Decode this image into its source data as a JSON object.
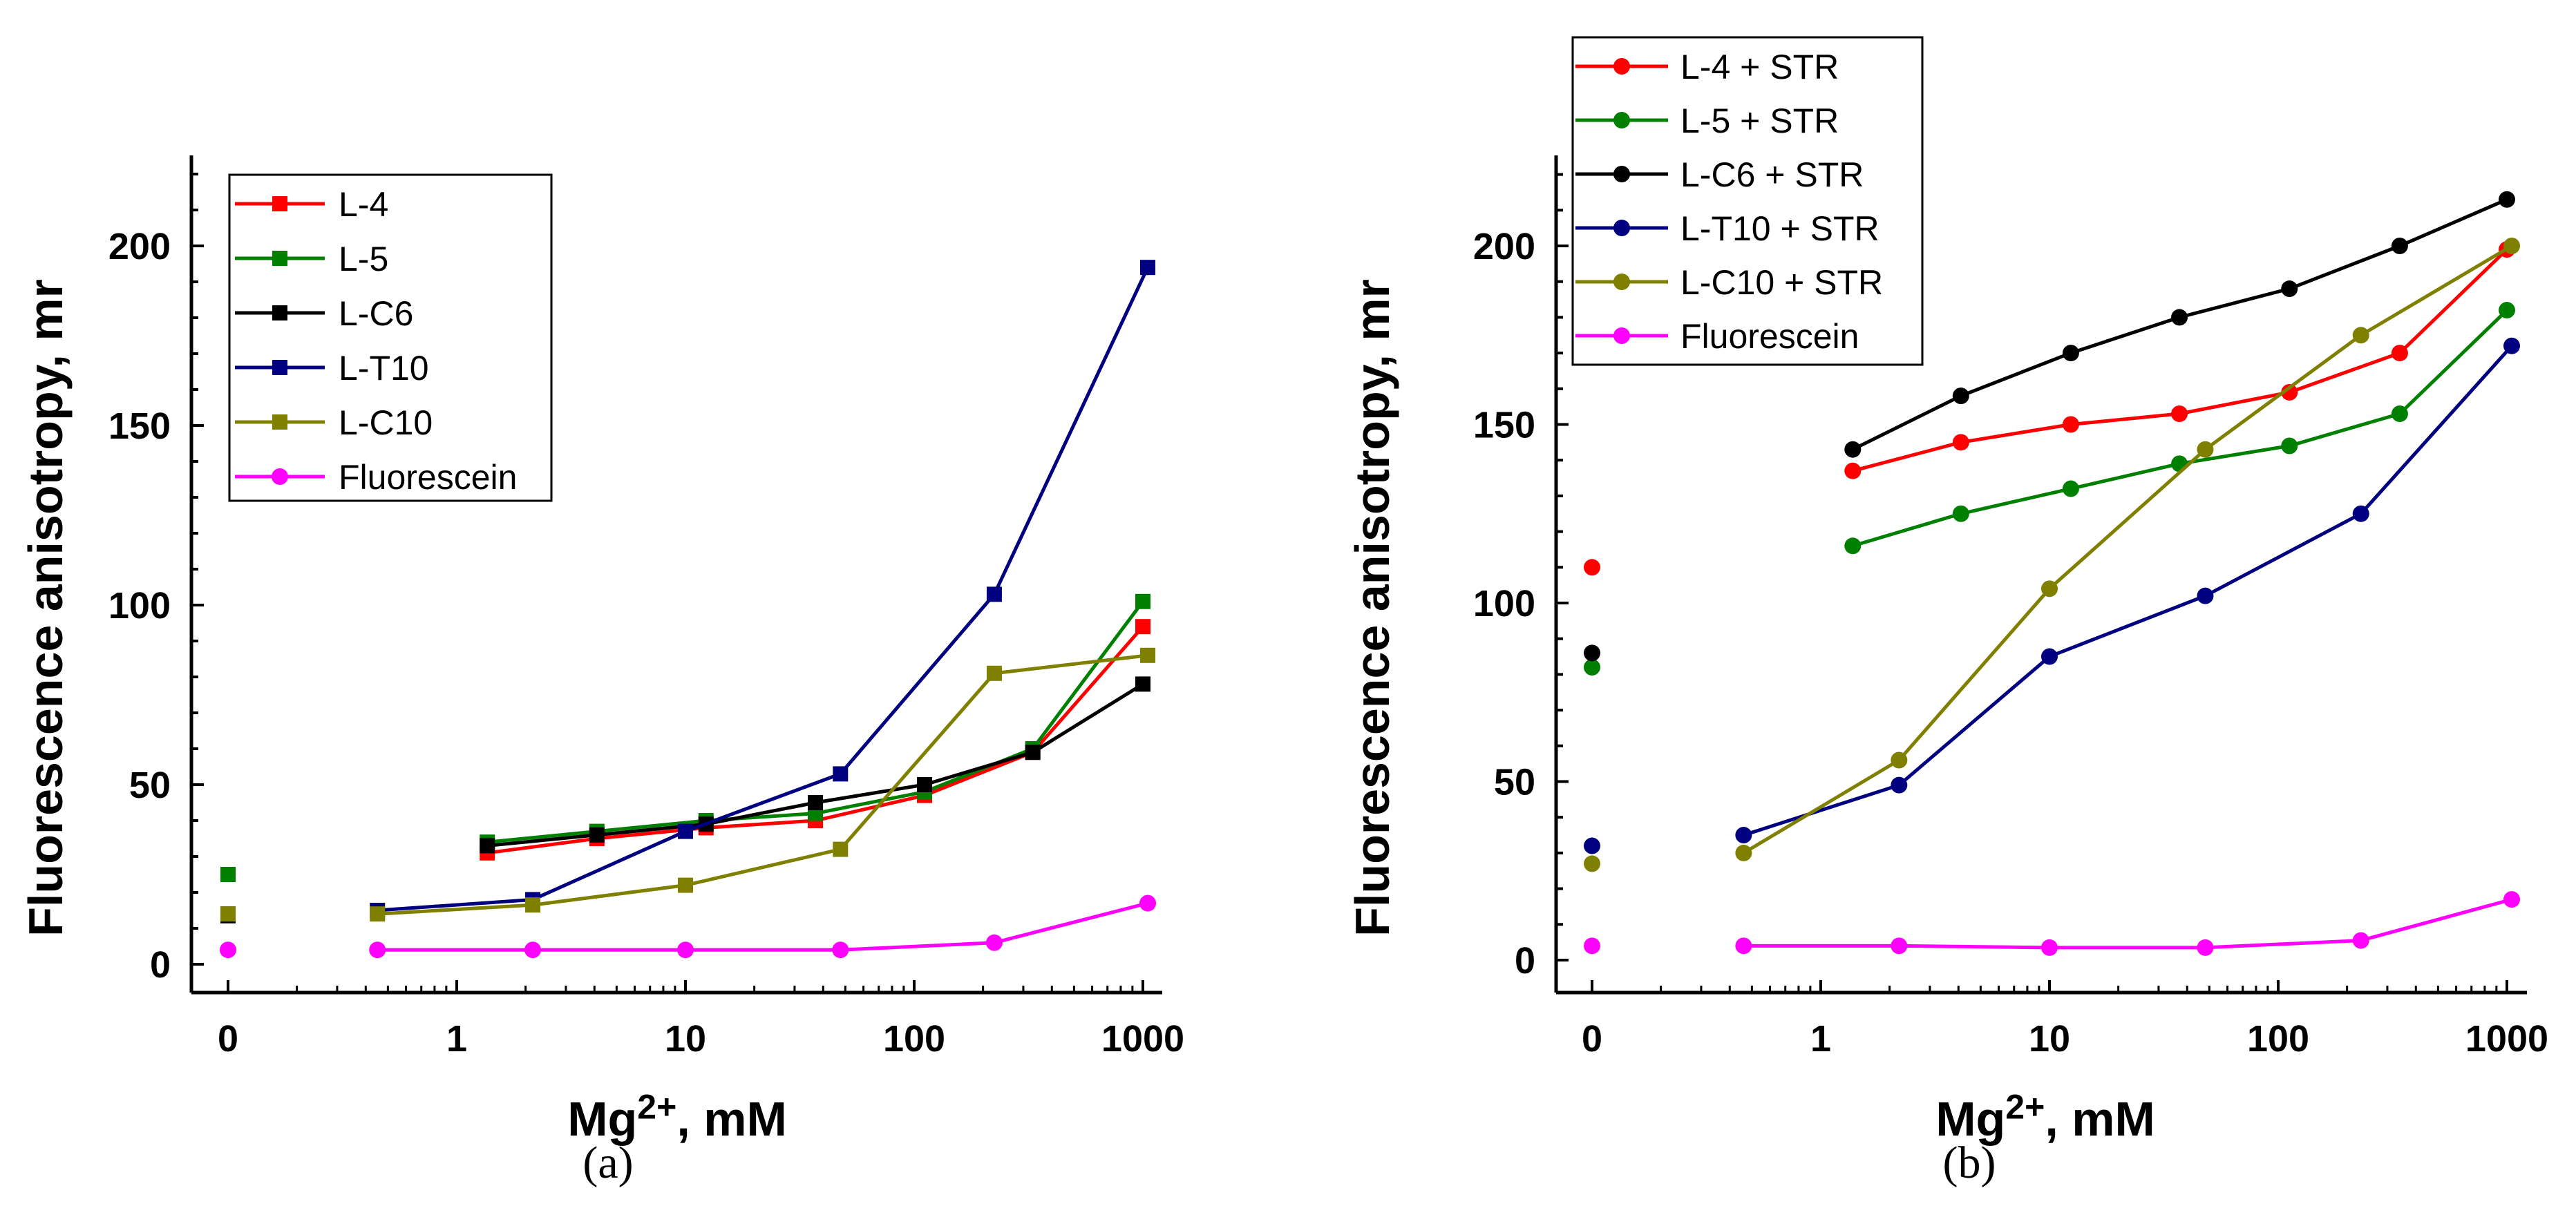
{
  "chart_data": [
    {
      "type": "line",
      "panel_label": "(a)",
      "panel_letter": "a",
      "xlabel": "Mg2+, mM",
      "xlabel_base": "Mg",
      "xlabel_sup": "2+",
      "xlabel_unit": ", mM",
      "ylabel": "Fluorescence anisotropy, mr",
      "xscale": "log with break at 0",
      "xticks": [
        "0",
        "1",
        "10",
        "100",
        "1000"
      ],
      "yticks": [
        0,
        50,
        100,
        150,
        200
      ],
      "ylim": [
        -8,
        225
      ],
      "legend_position": "top-left",
      "series": [
        {
          "name": "L-4",
          "color": "#ff0000",
          "marker": "square",
          "zero": null,
          "x": [
            1.36,
            4.1,
            12.3,
            37,
            111,
            330,
            1000
          ],
          "y": [
            31,
            35,
            38,
            40,
            47,
            59,
            94
          ]
        },
        {
          "name": "L-5",
          "color": "#008000",
          "marker": "square",
          "zero": 25,
          "x": [
            1.36,
            4.1,
            12.3,
            37,
            111,
            330,
            1000
          ],
          "y": [
            34,
            37,
            40,
            42,
            48,
            60,
            101
          ]
        },
        {
          "name": "L-C6",
          "color": "#000000",
          "marker": "square",
          "zero": 13.5,
          "x": [
            1.36,
            4.1,
            12.3,
            37,
            111,
            330,
            1000
          ],
          "y": [
            33,
            36,
            39,
            45,
            50,
            59,
            78
          ]
        },
        {
          "name": "L-T10",
          "color": "#000080",
          "marker": "square",
          "zero": 14,
          "x": [
            0.45,
            2.15,
            10,
            47.6,
            224,
            1050
          ],
          "y": [
            15,
            18,
            37,
            53,
            103,
            194
          ]
        },
        {
          "name": "L-C10",
          "color": "#808000",
          "marker": "square",
          "zero": 14,
          "x": [
            0.45,
            2.15,
            10,
            47.6,
            224,
            1050
          ],
          "y": [
            14,
            16.5,
            22,
            32,
            81,
            86
          ]
        },
        {
          "name": "Fluorescein",
          "color": "#ff00ff",
          "marker": "circle",
          "zero": 4,
          "x": [
            0.45,
            2.15,
            10,
            47.6,
            224,
            1050
          ],
          "y": [
            4,
            4,
            4,
            4,
            6,
            17
          ]
        }
      ]
    },
    {
      "type": "line",
      "panel_label": "(b)",
      "panel_letter": "b",
      "xlabel": "Mg2+, mM",
      "xlabel_base": "Mg",
      "xlabel_sup": "2+",
      "xlabel_unit": ", mM",
      "ylabel": "Fluorescence anisotropy, mr",
      "xscale": "log with break at 0",
      "xticks": [
        "0",
        "1",
        "10",
        "100",
        "1000"
      ],
      "yticks": [
        0,
        50,
        100,
        150,
        200
      ],
      "ylim": [
        -8,
        225
      ],
      "legend_position": "top-left (outside, above)",
      "series": [
        {
          "name": "L-4 + STR",
          "color": "#ff0000",
          "marker": "circle",
          "zero": 110,
          "x": [
            1.38,
            4.1,
            12.4,
            37,
            112,
            340,
            1000
          ],
          "y": [
            137,
            145,
            150,
            153,
            159,
            170,
            199
          ]
        },
        {
          "name": "L-5 + STR",
          "color": "#008000",
          "marker": "circle",
          "zero": 82,
          "x": [
            1.38,
            4.1,
            12.4,
            37,
            112,
            340,
            1000
          ],
          "y": [
            116,
            125,
            132,
            139,
            144,
            153,
            182
          ]
        },
        {
          "name": "L-C6 + STR",
          "color": "#000000",
          "marker": "circle",
          "zero": 86,
          "x": [
            1.38,
            4.1,
            12.4,
            37,
            112,
            340,
            1000
          ],
          "y": [
            143,
            158,
            170,
            180,
            188,
            200,
            213
          ]
        },
        {
          "name": "L-T10 + STR",
          "color": "#000080",
          "marker": "circle",
          "zero": 32,
          "x": [
            0.46,
            2.2,
            10,
            48,
            230,
            1050
          ],
          "y": [
            35,
            49,
            85,
            102,
            125,
            172
          ]
        },
        {
          "name": "L-C10 + STR",
          "color": "#808000",
          "marker": "circle",
          "zero": 27,
          "x": [
            0.46,
            2.2,
            10,
            48,
            230,
            1050
          ],
          "y": [
            30,
            56,
            104,
            143,
            175,
            200
          ]
        },
        {
          "name": "Fluorescein",
          "color": "#ff00ff",
          "marker": "circle",
          "zero": 4,
          "x": [
            0.46,
            2.2,
            10,
            48,
            230,
            1050
          ],
          "y": [
            4,
            4,
            3.5,
            3.5,
            5.5,
            17
          ]
        }
      ]
    }
  ]
}
